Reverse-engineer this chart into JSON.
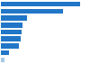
{
  "values": [
    585,
    460,
    195,
    160,
    155,
    145,
    135,
    60,
    28
  ],
  "bar_color_main": "#2176c7",
  "bar_color_last": "#a8c8e8",
  "background_color": "#ffffff",
  "xlim": [
    0,
    650
  ],
  "figsize": [
    1.0,
    0.71
  ],
  "dpi": 100,
  "bar_height": 0.72,
  "grid_color": "#cccccc",
  "grid_lw": 0.4
}
